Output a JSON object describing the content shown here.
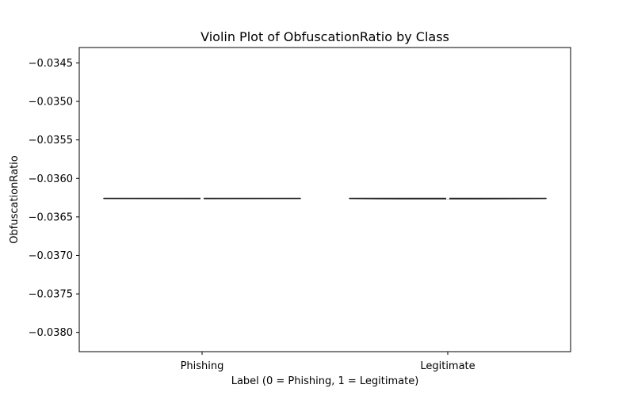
{
  "chart_data": {
    "type": "violin",
    "title": "Violin Plot of ObfuscationRatio by Class",
    "xlabel": "Label (0 = Phishing, 1 = Legitimate)",
    "ylabel": "ObfuscationRatio",
    "categories": [
      "Phishing",
      "Legitimate"
    ],
    "series": [
      {
        "category": "Phishing",
        "median": -0.03626,
        "min": -0.03626,
        "max": -0.03626
      },
      {
        "category": "Legitimate",
        "median": -0.03626,
        "min": -0.036265,
        "max": -0.03626
      }
    ],
    "ylim": [
      -0.03825,
      -0.0343
    ],
    "yticks": [
      -0.0345,
      -0.035,
      -0.0355,
      -0.036,
      -0.0365,
      -0.037,
      -0.0375,
      -0.038
    ],
    "ytick_labels": [
      "−0.0345",
      "−0.0350",
      "−0.0355",
      "−0.0360",
      "−0.0365",
      "−0.0370",
      "−0.0375",
      "−0.0380"
    ],
    "violin_color": "#262626",
    "grid": false,
    "legend": "none"
  }
}
